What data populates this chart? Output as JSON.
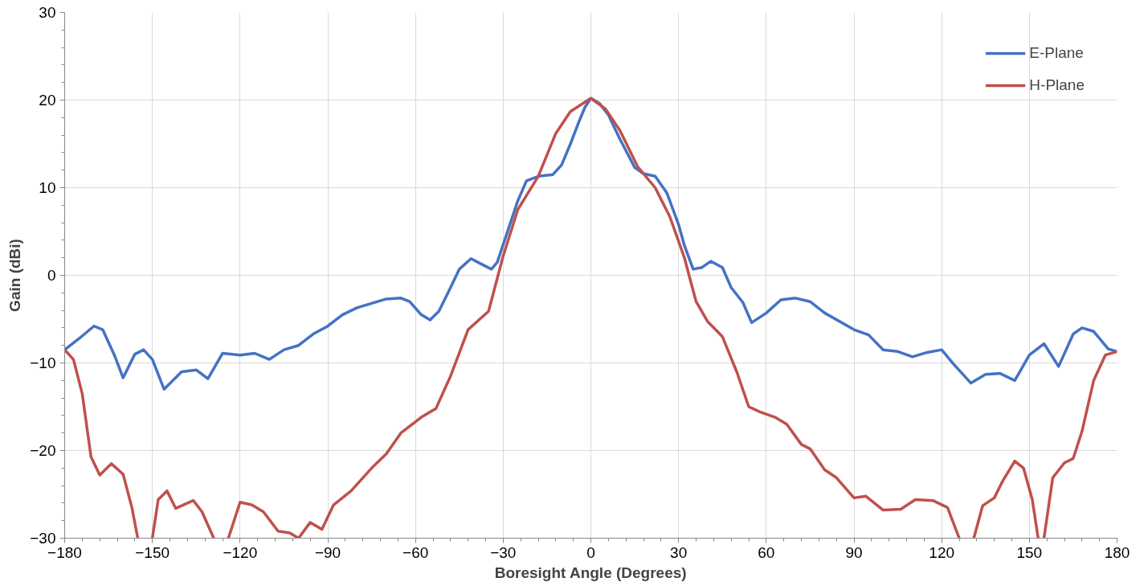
{
  "chart_data": {
    "type": "line",
    "xlabel": "Boresight Angle (Degrees)",
    "ylabel": "Gain (dBi)",
    "xlim": [
      -180,
      180
    ],
    "ylim": [
      -30,
      30
    ],
    "xticks": [
      -180,
      -150,
      -120,
      -90,
      -60,
      -30,
      0,
      30,
      60,
      90,
      120,
      150,
      180
    ],
    "yticks": [
      -30,
      -20,
      -10,
      0,
      10,
      20,
      30
    ],
    "grid": true,
    "legend": "top right",
    "marker": "none",
    "line_style": "solid",
    "series": [
      {
        "name": "E-Plane",
        "color": "#4472c4",
        "x": [
          -180,
          -175,
          -170,
          -167,
          -163,
          -160,
          -156,
          -153,
          -150,
          -146,
          -140,
          -135,
          -131,
          -126,
          -120,
          -115,
          -110,
          -105,
          -100,
          -95,
          -90,
          -85,
          -80,
          -70,
          -65,
          -62,
          -58,
          -55,
          -52,
          -48,
          -45,
          -41,
          -37,
          -34,
          -32,
          -28,
          -25,
          -22,
          -18,
          -13,
          -10,
          -7,
          -4,
          -2,
          0,
          3,
          6,
          10,
          15,
          18,
          22,
          26,
          30,
          32,
          35,
          38,
          41,
          45,
          48,
          52,
          55,
          60,
          65,
          70,
          75,
          80,
          90,
          95,
          100,
          105,
          110,
          115,
          120,
          124,
          130,
          135,
          140,
          145,
          150,
          155,
          160,
          165,
          168,
          172,
          177,
          180
        ],
        "values": [
          -8.5,
          -7.2,
          -5.8,
          -6.2,
          -9.1,
          -11.7,
          -9,
          -8.5,
          -9.6,
          -13,
          -11,
          -10.8,
          -11.8,
          -8.9,
          -9.1,
          -8.9,
          -9.6,
          -8.5,
          -8,
          -6.7,
          -5.8,
          -4.5,
          -3.7,
          -2.7,
          -2.6,
          -3,
          -4.5,
          -5.1,
          -4.1,
          -1.4,
          0.7,
          1.9,
          1.2,
          0.7,
          1.5,
          5.5,
          8.5,
          10.8,
          11.3,
          11.5,
          12.6,
          15,
          17.6,
          19.2,
          20.2,
          19.6,
          18.3,
          15.5,
          12.3,
          11.6,
          11.3,
          9.4,
          5.8,
          3.4,
          0.7,
          0.9,
          1.6,
          0.9,
          -1.4,
          -3.1,
          -5.4,
          -4.3,
          -2.8,
          -2.6,
          -3,
          -4.3,
          -6.2,
          -6.8,
          -8.5,
          -8.7,
          -9.3,
          -8.8,
          -8.5,
          -10.1,
          -12.3,
          -11.3,
          -11.2,
          -12,
          -9.1,
          -7.8,
          -10.4,
          -6.7,
          -6,
          -6.4,
          -8.4,
          -8.7
        ]
      },
      {
        "name": "H-Plane",
        "color": "#c0504d",
        "x": [
          -180,
          -177,
          -174,
          -171,
          -168,
          -164,
          -160,
          -157,
          -155,
          -152,
          -150,
          -148,
          -145,
          -142,
          -136,
          -133,
          -129,
          -127,
          -124,
          -120,
          -116,
          -112,
          -107,
          -103,
          -100,
          -96,
          -92,
          -88,
          -82,
          -75,
          -70,
          -65,
          -58,
          -53,
          -48,
          -42,
          -35,
          -30,
          -25,
          -18,
          -12,
          -7,
          0,
          5,
          10,
          16,
          22,
          27,
          32,
          36,
          40,
          45,
          50,
          54,
          58,
          63,
          67,
          72,
          75,
          80,
          84,
          90,
          94,
          100,
          106,
          111,
          117,
          122,
          126,
          128,
          131,
          134,
          138,
          141,
          145,
          148,
          151,
          153,
          154,
          155,
          158,
          162,
          165,
          168,
          172,
          176,
          180
        ],
        "values": [
          -8.5,
          -9.6,
          -13.5,
          -20.7,
          -22.8,
          -21.5,
          -22.7,
          -26.5,
          -30,
          null,
          -30,
          -25.6,
          -24.6,
          -26.6,
          -25.7,
          -27,
          -30,
          null,
          -30,
          -25.9,
          -26.2,
          -27,
          -29.2,
          -29.4,
          -30,
          -28.2,
          -29,
          -26.2,
          -24.6,
          -22,
          -20.4,
          -18,
          -16.2,
          -15.2,
          -11.5,
          -6.2,
          -4.1,
          2.2,
          7.5,
          11.3,
          16.2,
          18.7,
          20.2,
          19,
          16.5,
          12.4,
          10,
          6.7,
          2,
          -3,
          -5.3,
          -7,
          -11.1,
          -15,
          -15.6,
          -16.2,
          -17,
          -19.3,
          -19.8,
          -22.2,
          -23.1,
          -25.4,
          -25.2,
          -26.8,
          -26.7,
          -25.6,
          -25.7,
          -26.5,
          -30,
          null,
          -30,
          -26.3,
          -25.4,
          -23.4,
          -21.2,
          -22,
          -25.6,
          -30,
          null,
          -30,
          -23.1,
          -21.4,
          -20.9,
          -17.8,
          -12,
          -9.1,
          -8.7
        ]
      }
    ]
  }
}
